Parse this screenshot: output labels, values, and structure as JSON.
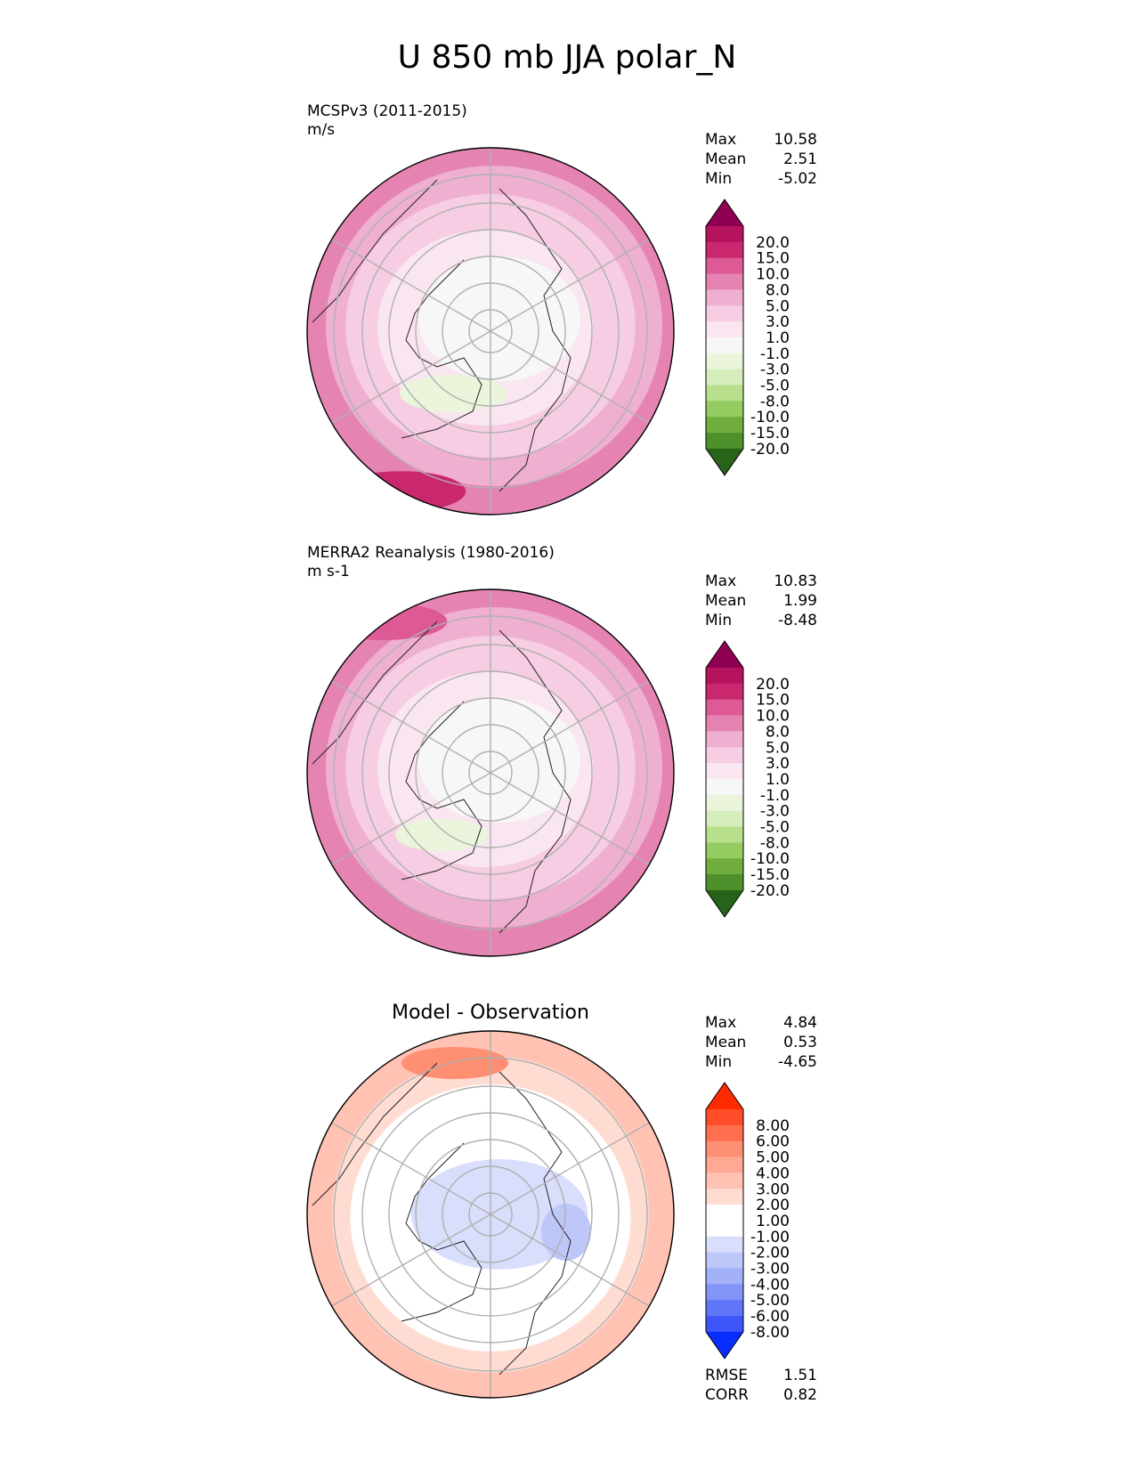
{
  "figure": {
    "title": "U 850 mb JJA polar_N"
  },
  "chart_data": [
    {
      "type": "heatmap",
      "projection": "north-polar-stereographic",
      "title": "",
      "subtitle": "MCSPv3 (2011-2015)",
      "units": "m/s",
      "stats": [
        {
          "label": "Max",
          "value": "10.58"
        },
        {
          "label": "Mean",
          "value": "2.51"
        },
        {
          "label": "Min",
          "value": "-5.02"
        }
      ],
      "colorbar": {
        "ticks": [
          "20.0",
          "15.0",
          "10.0",
          "8.0",
          "5.0",
          "3.0",
          "1.0",
          "-1.0",
          "-3.0",
          "-5.0",
          "-8.0",
          "-10.0",
          "-15.0",
          "-20.0"
        ],
        "colors": [
          "#8e0152",
          "#b5135e",
          "#c9286f",
          "#dd5a96",
          "#e584b3",
          "#efafd1",
          "#f6cde3",
          "#fae6f0",
          "#f7f7f7",
          "#eaf5dc",
          "#d5ecbb",
          "#b8df8c",
          "#94cc62",
          "#6fae3e",
          "#4e902b",
          "#276419"
        ]
      },
      "grid": true
    },
    {
      "type": "heatmap",
      "projection": "north-polar-stereographic",
      "title": "",
      "subtitle": "MERRA2 Reanalysis (1980-2016)",
      "units": "m s-1",
      "stats": [
        {
          "label": "Max",
          "value": "10.83"
        },
        {
          "label": "Mean",
          "value": "1.99"
        },
        {
          "label": "Min",
          "value": "-8.48"
        }
      ],
      "colorbar": {
        "ticks": [
          "20.0",
          "15.0",
          "10.0",
          "8.0",
          "5.0",
          "3.0",
          "1.0",
          "-1.0",
          "-3.0",
          "-5.0",
          "-8.0",
          "-10.0",
          "-15.0",
          "-20.0"
        ],
        "colors": [
          "#8e0152",
          "#b5135e",
          "#c9286f",
          "#dd5a96",
          "#e584b3",
          "#efafd1",
          "#f6cde3",
          "#fae6f0",
          "#f7f7f7",
          "#eaf5dc",
          "#d5ecbb",
          "#b8df8c",
          "#94cc62",
          "#6fae3e",
          "#4e902b",
          "#276419"
        ]
      },
      "grid": true
    },
    {
      "type": "heatmap",
      "projection": "north-polar-stereographic",
      "title": "Model - Observation",
      "subtitle": "",
      "units": "",
      "stats": [
        {
          "label": "Max",
          "value": "4.84"
        },
        {
          "label": "Mean",
          "value": "0.53"
        },
        {
          "label": "Min",
          "value": "-4.65"
        }
      ],
      "metrics": [
        {
          "label": "RMSE",
          "value": "1.51"
        },
        {
          "label": "CORR",
          "value": "0.82"
        }
      ],
      "colorbar": {
        "ticks": [
          "8.00",
          "6.00",
          "5.00",
          "4.00",
          "3.00",
          "2.00",
          "1.00",
          "-1.00",
          "-2.00",
          "-3.00",
          "-4.00",
          "-5.00",
          "-6.00",
          "-8.00"
        ],
        "colors": [
          "#ff2a00",
          "#ff4d2a",
          "#ff6f4d",
          "#ff8f73",
          "#ffa995",
          "#ffc2b3",
          "#ffdcd2",
          "#ffffff",
          "#ffffff",
          "#d9defc",
          "#bec7fa",
          "#a2b0f8",
          "#8294f7",
          "#6076f8",
          "#3d55f9",
          "#0a2dff"
        ]
      },
      "grid": true
    }
  ]
}
